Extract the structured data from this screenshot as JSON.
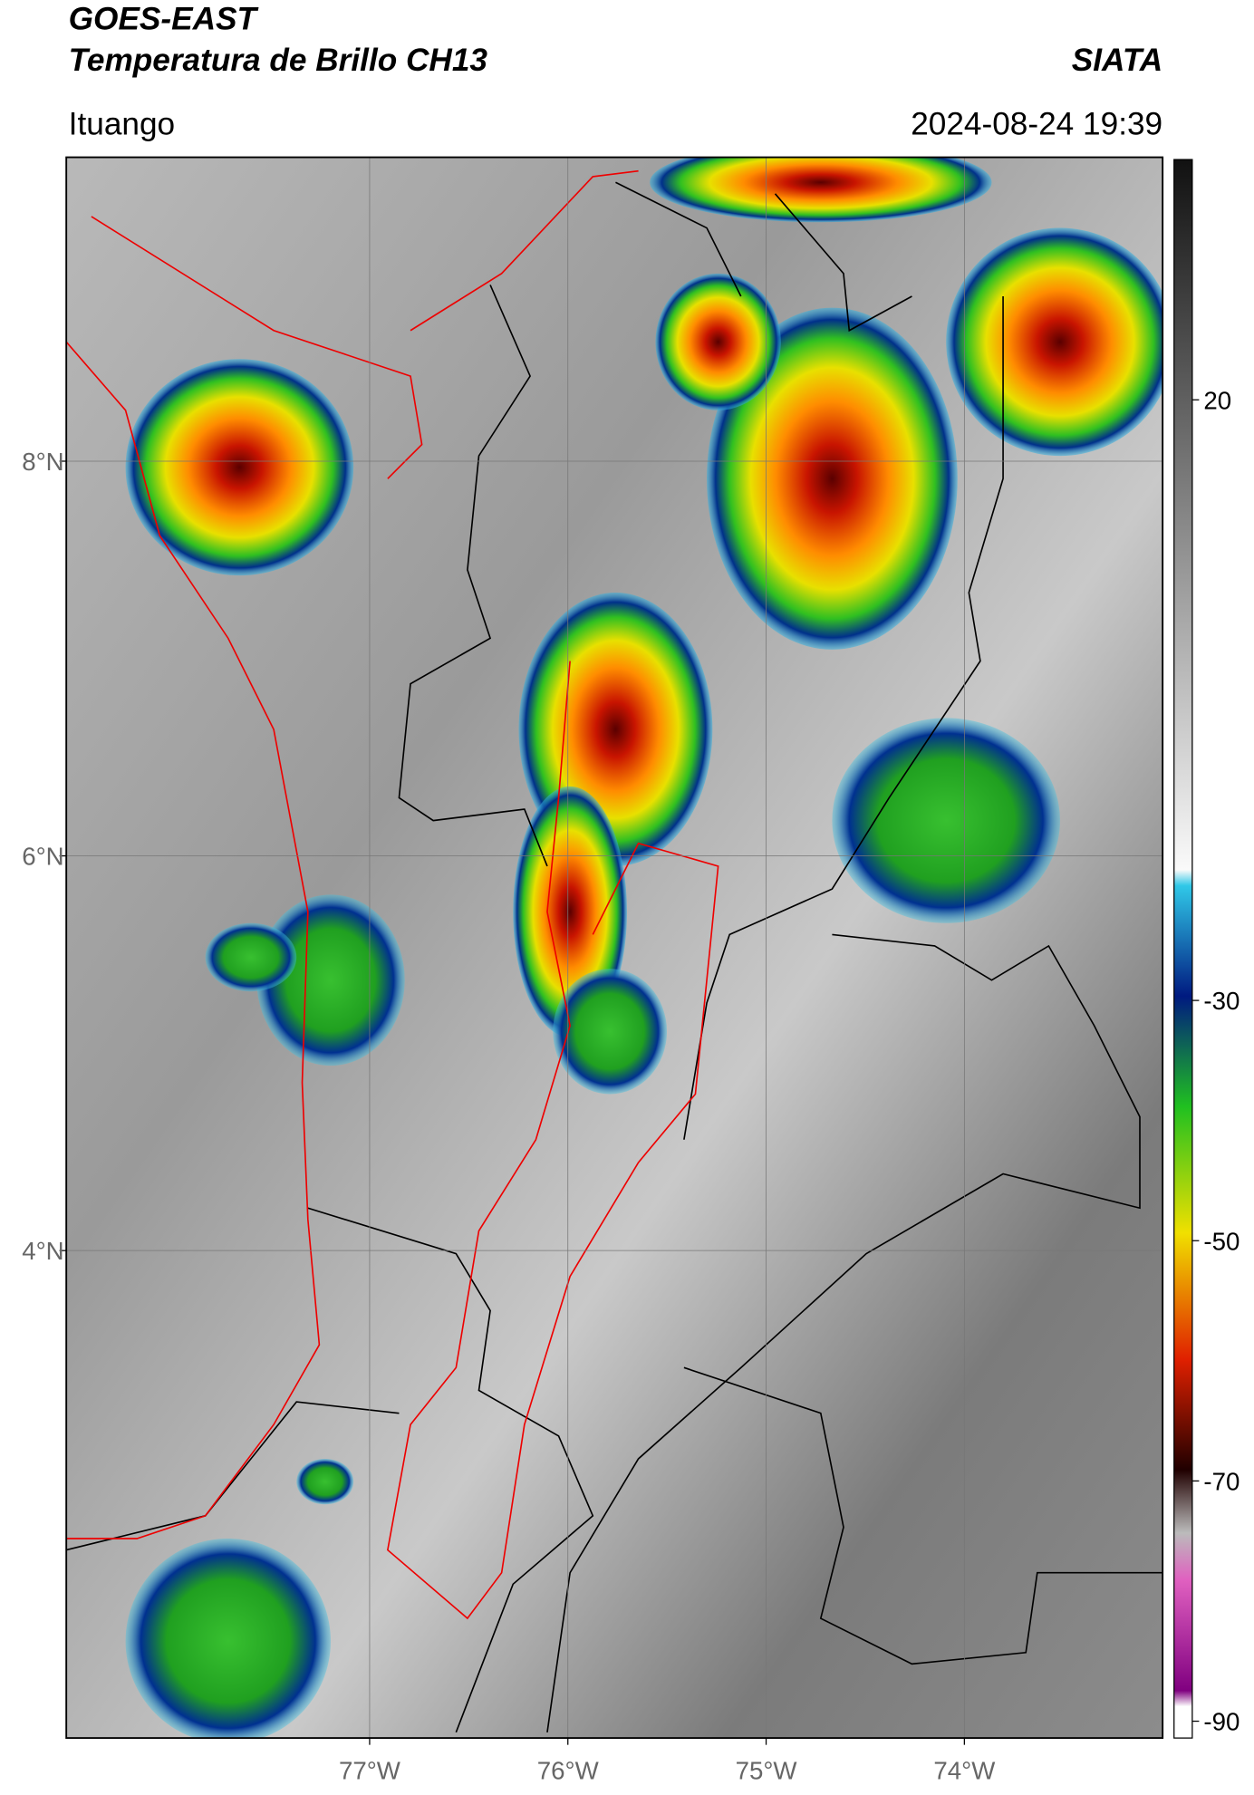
{
  "header": {
    "title_line1": "GOES-EAST",
    "title_line2": "Temperatura de Brillo CH13",
    "brand": "SIATA",
    "location": "Ituango",
    "timestamp": "2024-08-24 19:39"
  },
  "map": {
    "lonlim": [
      -78.53,
      -73.0
    ],
    "latlim": [
      1.53,
      9.54
    ],
    "lat_ticks": [
      {
        "value": 8,
        "label": "8°N"
      },
      {
        "value": 6,
        "label": "6°N"
      },
      {
        "value": 4,
        "label": "4°N"
      }
    ],
    "lon_ticks": [
      {
        "value": -77,
        "label": "77°W"
      },
      {
        "value": -76,
        "label": "76°W"
      },
      {
        "value": -75,
        "label": "75°W"
      },
      {
        "value": -74,
        "label": "74°W"
      }
    ]
  },
  "colorbar": {
    "lim": [
      -91.4,
      40
    ],
    "ticks": [
      20,
      -30,
      -50,
      -70,
      -90
    ]
  }
}
